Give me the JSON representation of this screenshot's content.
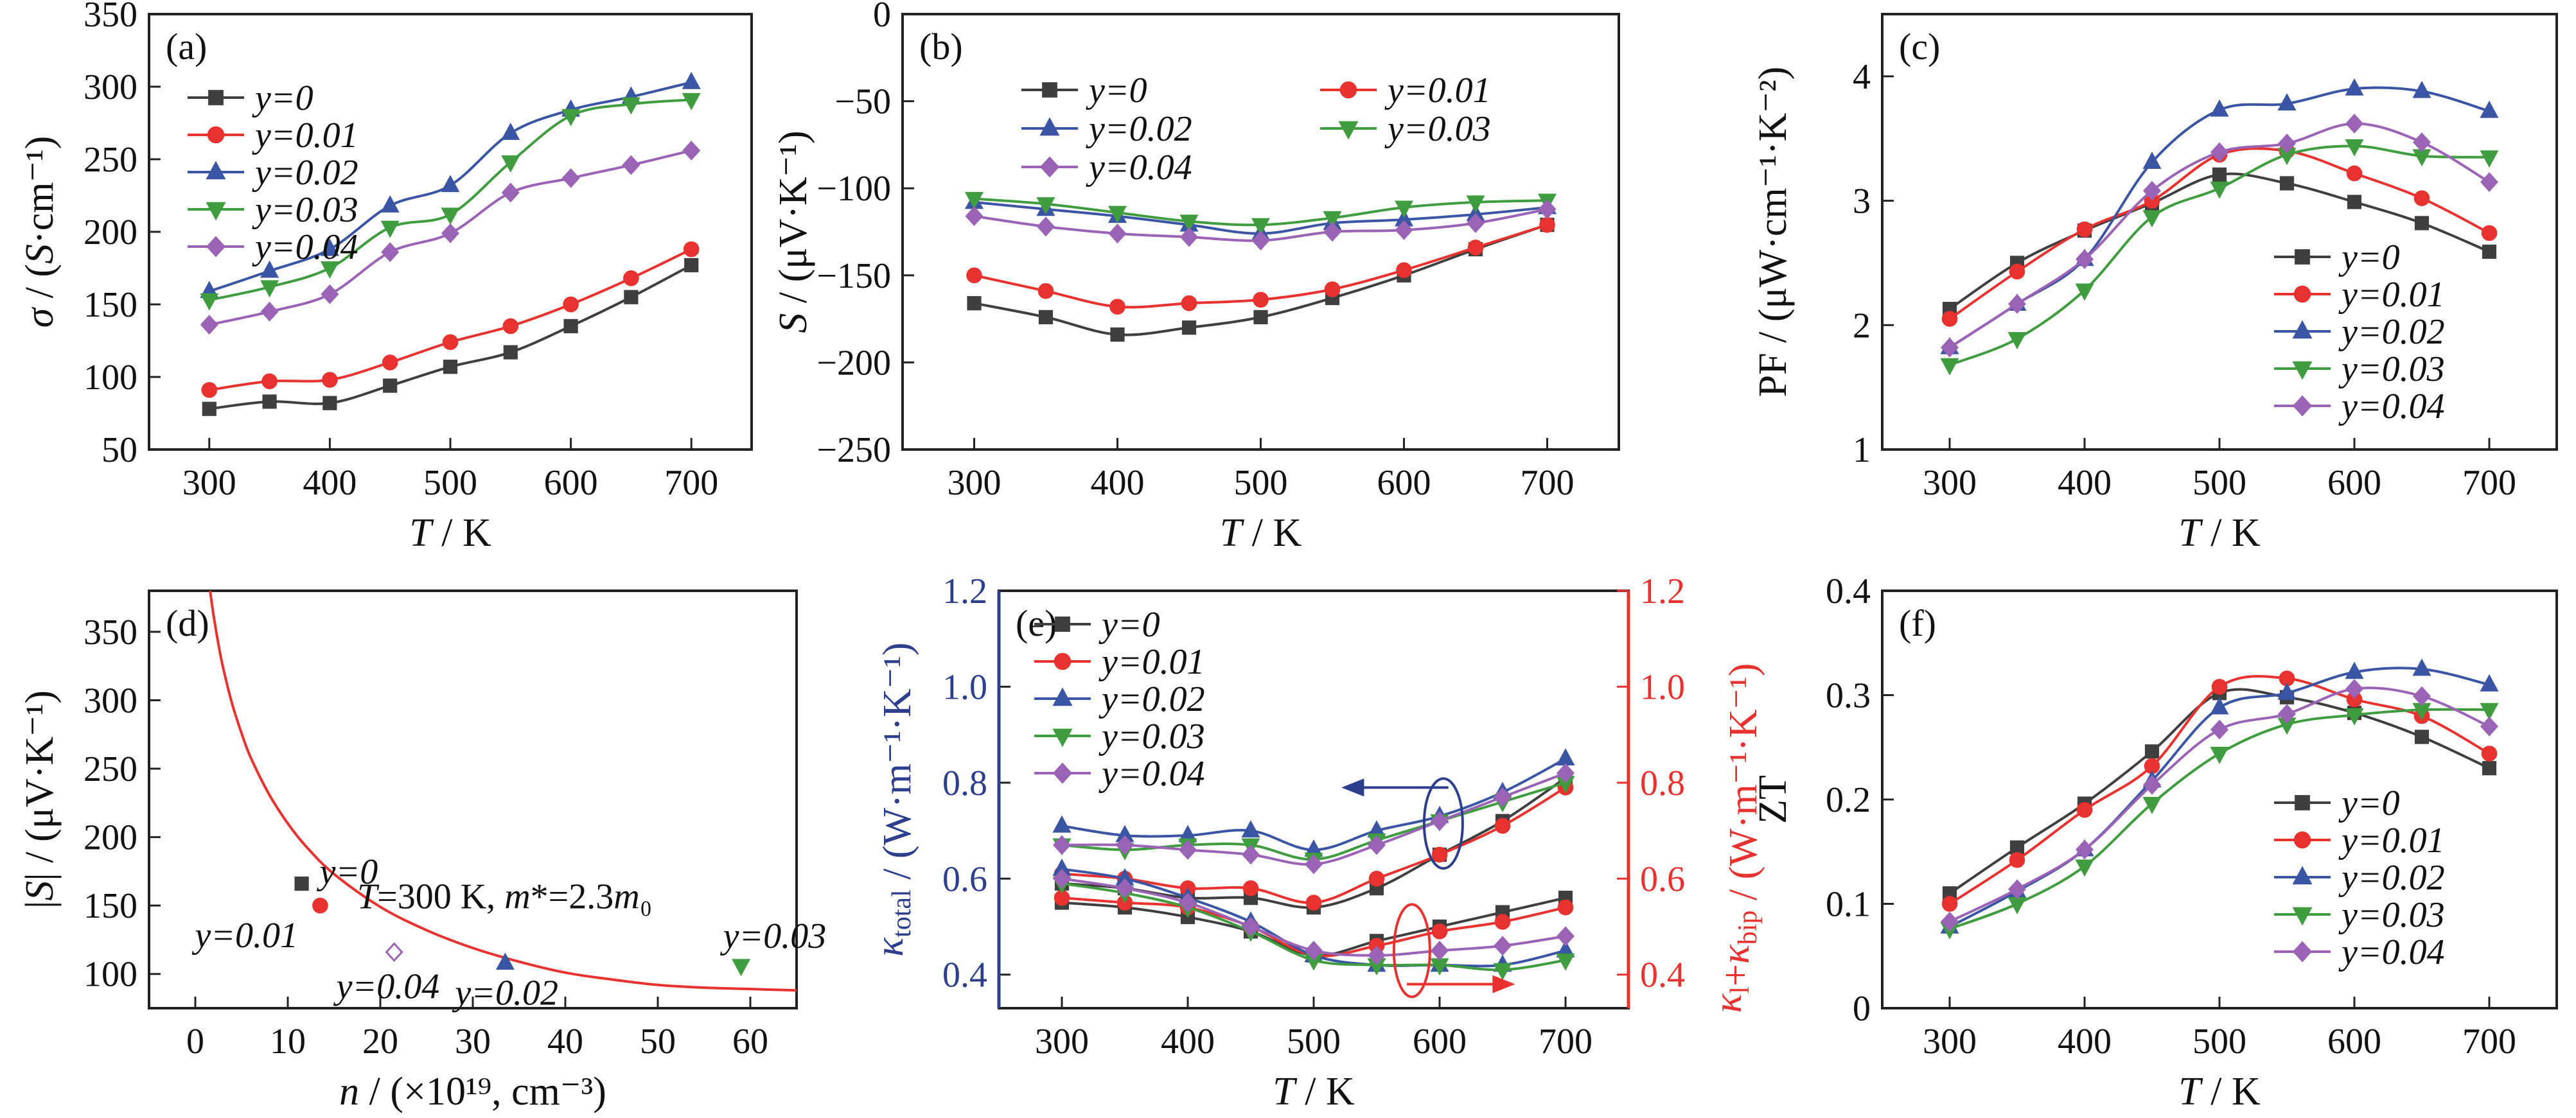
{
  "colors": {
    "y0": "#3f3f3f",
    "y001": "#e8322f",
    "y002": "#3a55a4",
    "y003": "#3f9d3f",
    "y004": "#9a63b6",
    "fit": "#e8322f",
    "kappa_total_axis": "#2d3f8c",
    "kappa_bip_axis": "#e8322f"
  },
  "chart_data": [
    {
      "panel": "(a)",
      "type": "line",
      "ylabel": "σ / (S·cm⁻¹)",
      "xlabel": "T / K",
      "xlim": [
        250,
        750
      ],
      "ylim": [
        50,
        350
      ],
      "xticks": [
        "300",
        "400",
        "500",
        "600",
        "700"
      ],
      "yticks": [
        "50",
        "100",
        "150",
        "200",
        "250",
        "300",
        "350"
      ],
      "legend": "top-left",
      "x": [
        300,
        350,
        400,
        450,
        500,
        550,
        600,
        650,
        700
      ],
      "series": [
        {
          "name": "y=0",
          "values": [
            78,
            83,
            82,
            94,
            107,
            117,
            135,
            155,
            177
          ]
        },
        {
          "name": "y=0.01",
          "values": [
            91,
            97,
            98,
            110,
            124,
            135,
            150,
            168,
            188
          ]
        },
        {
          "name": "y=0.02",
          "values": [
            159,
            173,
            188,
            218,
            232,
            268,
            284,
            293,
            303
          ]
        },
        {
          "name": "y=0.03",
          "values": [
            153,
            162,
            175,
            203,
            212,
            248,
            280,
            288,
            291
          ]
        },
        {
          "name": "y=0.04",
          "values": [
            136,
            145,
            157,
            186,
            199,
            227,
            237,
            246,
            256
          ]
        }
      ]
    },
    {
      "panel": "(b)",
      "type": "line",
      "ylabel": "S / (μV·K⁻¹)",
      "xlabel": "T / K",
      "xlim": [
        250,
        750
      ],
      "ylim": [
        -250,
        0
      ],
      "xticks": [
        "300",
        "400",
        "500",
        "600",
        "700"
      ],
      "yticks": [
        "-250",
        "-200",
        "-150",
        "-100",
        "-50",
        "0"
      ],
      "legend": "top",
      "x": [
        300,
        350,
        400,
        450,
        500,
        550,
        600,
        650,
        700
      ],
      "series": [
        {
          "name": "y=0",
          "values": [
            -166,
            -174,
            -184,
            -180,
            -174,
            -163,
            -150,
            -135,
            -121
          ]
        },
        {
          "name": "y=0.01",
          "values": [
            -150,
            -159,
            -168,
            -166,
            -164,
            -158,
            -147,
            -134,
            -121
          ]
        },
        {
          "name": "y=0.02",
          "values": [
            -108,
            -112,
            -116,
            -121,
            -126,
            -120,
            -118,
            -115,
            -111
          ]
        },
        {
          "name": "y=0.03",
          "values": [
            -106,
            -109,
            -114,
            -119,
            -121,
            -117,
            -111,
            -108,
            -107
          ]
        },
        {
          "name": "y=0.04",
          "values": [
            -116,
            -122,
            -126,
            -128,
            -130,
            -125,
            -124,
            -120,
            -112
          ]
        }
      ]
    },
    {
      "panel": "(c)",
      "type": "line",
      "ylabel": "PF / (μW·cm⁻¹·K⁻²)",
      "xlabel": "T / K",
      "xlim": [
        250,
        750
      ],
      "ylim": [
        1,
        4.5
      ],
      "xticks": [
        "300",
        "400",
        "500",
        "600",
        "700"
      ],
      "yticks": [
        "1",
        "2",
        "3",
        "4"
      ],
      "legend": "bottom-right",
      "x": [
        300,
        350,
        400,
        450,
        500,
        550,
        600,
        650,
        700
      ],
      "series": [
        {
          "name": "y=0",
          "values": [
            2.13,
            2.5,
            2.76,
            2.98,
            3.21,
            3.14,
            2.99,
            2.82,
            2.59
          ]
        },
        {
          "name": "y=0.01",
          "values": [
            2.05,
            2.43,
            2.77,
            3.0,
            3.37,
            3.4,
            3.22,
            3.02,
            2.74
          ]
        },
        {
          "name": "y=0.02",
          "values": [
            1.82,
            2.17,
            2.53,
            3.31,
            3.73,
            3.78,
            3.9,
            3.88,
            3.72
          ]
        },
        {
          "name": "y=0.03",
          "values": [
            1.68,
            1.89,
            2.28,
            2.87,
            3.1,
            3.37,
            3.44,
            3.36,
            3.35
          ]
        },
        {
          "name": "y=0.04",
          "values": [
            1.82,
            2.17,
            2.53,
            3.08,
            3.39,
            3.46,
            3.62,
            3.47,
            3.15
          ]
        }
      ]
    },
    {
      "panel": "(d)",
      "type": "scatter",
      "ylabel": "|S| / (μV·K⁻¹)",
      "xlabel": "n / (×10¹⁹, cm⁻³)",
      "xlim": [
        -5,
        65
      ],
      "ylim": [
        75,
        380
      ],
      "xticks": [
        "0",
        "10",
        "20",
        "30",
        "40",
        "50",
        "60"
      ],
      "yticks": [
        "100",
        "150",
        "200",
        "250",
        "300",
        "350"
      ],
      "annotation": "T=300 K, m*=2.3m₀",
      "points": [
        {
          "name": "y=0",
          "x": 11.5,
          "y": 166
        },
        {
          "name": "y=0.01",
          "x": 13.5,
          "y": 150
        },
        {
          "name": "y=0.04",
          "x": 21.5,
          "y": 116
        },
        {
          "name": "y=0.02",
          "x": 33.5,
          "y": 108
        },
        {
          "name": "y=0.03",
          "x": 59,
          "y": 106
        }
      ],
      "fit": {
        "x": [
          1.6,
          2,
          2.5,
          3,
          4,
          5,
          6,
          8,
          10,
          12,
          15,
          20,
          25,
          30,
          35,
          40,
          45,
          50,
          55,
          60,
          65
        ],
        "y": [
          380,
          361,
          341,
          324,
          297,
          276,
          258,
          231,
          210,
          193,
          173,
          149,
          132,
          119,
          109,
          101,
          96,
          92,
          90,
          89,
          88
        ]
      }
    },
    {
      "panel": "(e)",
      "type": "line",
      "ylabel": "κtotal / (W·m⁻¹·K⁻¹)",
      "ylabel_right": "κl+κbip / (W·m⁻¹·K⁻¹)",
      "xlabel": "T / K",
      "xlim": [
        250,
        750
      ],
      "ylim": [
        0.33,
        1.2
      ],
      "xticks": [
        "300",
        "400",
        "500",
        "600",
        "700"
      ],
      "yticks": [
        "0.4",
        "0.6",
        "0.8",
        "1.0",
        "1.2"
      ],
      "legend": "top-left",
      "x": [
        300,
        350,
        400,
        450,
        500,
        550,
        600,
        650,
        700
      ],
      "series": [
        {
          "name": "y=0",
          "total": [
            0.59,
            0.58,
            0.56,
            0.56,
            0.54,
            0.58,
            0.65,
            0.72,
            0.81
          ],
          "lattice": [
            0.55,
            0.54,
            0.52,
            0.49,
            0.44,
            0.47,
            0.5,
            0.53,
            0.56
          ]
        },
        {
          "name": "y=0.01",
          "total": [
            0.61,
            0.6,
            0.58,
            0.58,
            0.55,
            0.6,
            0.65,
            0.71,
            0.79
          ],
          "lattice": [
            0.56,
            0.55,
            0.54,
            0.5,
            0.44,
            0.46,
            0.49,
            0.51,
            0.54
          ]
        },
        {
          "name": "y=0.02",
          "total": [
            0.71,
            0.69,
            0.69,
            0.7,
            0.66,
            0.7,
            0.73,
            0.78,
            0.85
          ],
          "lattice": [
            0.62,
            0.6,
            0.56,
            0.51,
            0.44,
            0.42,
            0.42,
            0.42,
            0.45
          ]
        },
        {
          "name": "y=0.03",
          "total": [
            0.67,
            0.66,
            0.67,
            0.67,
            0.64,
            0.68,
            0.72,
            0.76,
            0.8
          ],
          "lattice": [
            0.59,
            0.57,
            0.54,
            0.49,
            0.43,
            0.42,
            0.42,
            0.41,
            0.43
          ]
        },
        {
          "name": "y=0.04",
          "total": [
            0.67,
            0.67,
            0.66,
            0.65,
            0.63,
            0.67,
            0.72,
            0.77,
            0.82
          ],
          "lattice": [
            0.6,
            0.58,
            0.55,
            0.5,
            0.45,
            0.44,
            0.45,
            0.46,
            0.48
          ]
        }
      ]
    },
    {
      "panel": "(f)",
      "type": "line",
      "ylabel": "ZT",
      "xlabel": "T / K",
      "xlim": [
        250,
        750
      ],
      "ylim": [
        0,
        0.4
      ],
      "xticks": [
        "300",
        "400",
        "500",
        "600",
        "700"
      ],
      "yticks": [
        "0",
        "0.1",
        "0.2",
        "0.3",
        "0.4"
      ],
      "legend": "bottom-right",
      "x": [
        300,
        350,
        400,
        450,
        500,
        550,
        600,
        650,
        700
      ],
      "series": [
        {
          "name": "y=0",
          "values": [
            0.11,
            0.154,
            0.196,
            0.246,
            0.302,
            0.298,
            0.283,
            0.26,
            0.23
          ]
        },
        {
          "name": "y=0.01",
          "values": [
            0.1,
            0.142,
            0.19,
            0.232,
            0.308,
            0.316,
            0.296,
            0.28,
            0.244
          ]
        },
        {
          "name": "y=0.02",
          "values": [
            0.078,
            0.112,
            0.152,
            0.218,
            0.288,
            0.302,
            0.322,
            0.325,
            0.31
          ]
        },
        {
          "name": "y=0.03",
          "values": [
            0.076,
            0.1,
            0.136,
            0.196,
            0.244,
            0.272,
            0.281,
            0.286,
            0.286
          ]
        },
        {
          "name": "y=0.04",
          "values": [
            0.083,
            0.114,
            0.152,
            0.214,
            0.267,
            0.282,
            0.306,
            0.299,
            0.27
          ]
        }
      ]
    }
  ]
}
